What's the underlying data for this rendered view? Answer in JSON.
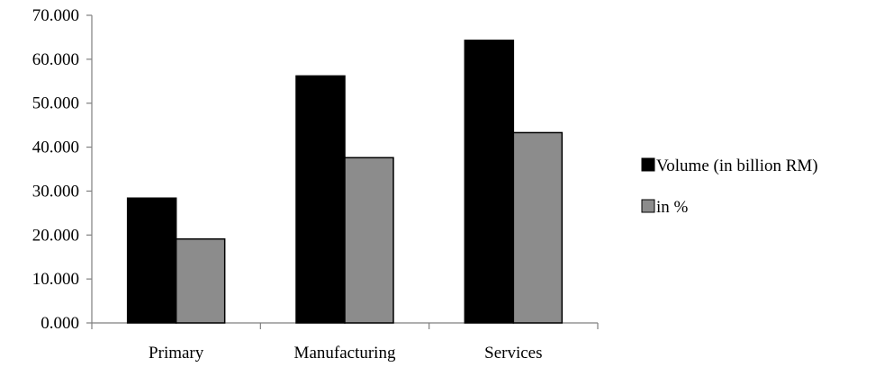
{
  "chart_data": {
    "type": "bar",
    "title": "",
    "xlabel": "",
    "ylabel": "",
    "categories": [
      "Primary",
      "Manufacturing",
      "Services"
    ],
    "series": [
      {
        "name": "Volume (in billion RM)",
        "values": [
          28.4,
          56.2,
          64.3
        ],
        "color": "#000000"
      },
      {
        "name": "in %",
        "values": [
          19.1,
          37.6,
          43.3
        ],
        "color": "#8c8c8c"
      }
    ],
    "ylim": [
      0,
      70
    ],
    "yticks": [
      0,
      10,
      20,
      30,
      40,
      50,
      60,
      70
    ],
    "ytick_labels": [
      "0.000",
      "10.000",
      "20.000",
      "30.000",
      "40.000",
      "50.000",
      "60.000",
      "70.000"
    ],
    "grid": false,
    "legend_position": "right"
  }
}
